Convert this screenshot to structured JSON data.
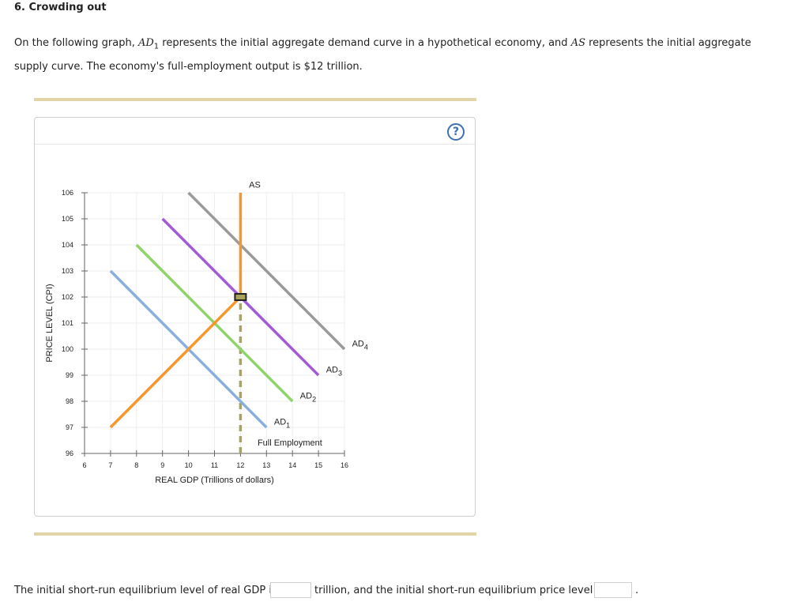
{
  "heading": "6. Crowding out",
  "intro": {
    "part1": "On the following graph, ",
    "ad1_sym": "AD",
    "ad1_sub": "1",
    "part2": " represents the initial aggregate demand curve in a hypothetical economy, and ",
    "as_sym": "AS",
    "part3": " represents the initial aggregate supply curve. The economy's full-employment output is $12 trillion."
  },
  "help_label": "?",
  "colors": {
    "ad1": "#8aafdc",
    "ad2": "#8fd46a",
    "ad3": "#a35ad6",
    "ad4": "#9a9a9a",
    "as": "#f7962a",
    "full_employment": "#a8a45c",
    "grid": "#eeeeee"
  },
  "chart_data": {
    "type": "line",
    "xlabel": "REAL GDP (Trillions of dollars)",
    "ylabel": "PRICE LEVEL (CPI)",
    "xlim": [
      6,
      16
    ],
    "ylim": [
      96,
      106
    ],
    "x_ticks": [
      "6",
      "7",
      "8",
      "9",
      "10",
      "11",
      "12",
      "13",
      "14",
      "15",
      "16"
    ],
    "y_ticks": [
      "96",
      "97",
      "98",
      "99",
      "100",
      "101",
      "102",
      "103",
      "104",
      "105",
      "106"
    ],
    "grid": true,
    "series": [
      {
        "name": "AD",
        "sub": "1",
        "color_key": "ad1",
        "points": [
          [
            7,
            103
          ],
          [
            13,
            97
          ]
        ],
        "label_at": [
          13.6,
          97.1
        ]
      },
      {
        "name": "AD",
        "sub": "2",
        "color_key": "ad2",
        "points": [
          [
            8,
            104
          ],
          [
            14,
            98
          ]
        ],
        "label_at": [
          14.6,
          98.1
        ]
      },
      {
        "name": "AD",
        "sub": "3",
        "color_key": "ad3",
        "points": [
          [
            9,
            105
          ],
          [
            15,
            99
          ]
        ],
        "label_at": [
          15.6,
          99.1
        ]
      },
      {
        "name": "AD",
        "sub": "4",
        "color_key": "ad4",
        "points": [
          [
            10,
            106
          ],
          [
            16,
            100
          ]
        ],
        "label_at": [
          16.6,
          100.1
        ]
      },
      {
        "name": "AS",
        "sub": "",
        "color_key": "as",
        "points": [
          [
            7,
            97
          ],
          [
            12,
            102
          ],
          [
            12,
            106
          ]
        ],
        "label_at": [
          12.55,
          106.2
        ]
      }
    ],
    "full_employment": {
      "label": "Full Employment",
      "x": 12,
      "from": 96,
      "to": 102,
      "label_at": [
        13.9,
        96.3
      ]
    },
    "marker": {
      "x": 12,
      "y": 102
    }
  },
  "question": {
    "part1": "The initial short-run equilibrium level of real GDP is",
    "dollar": "$",
    "part2": "trillion, and the initial short-run equilibrium price level is",
    "end": ".",
    "gdp_value": "",
    "price_value": ""
  }
}
